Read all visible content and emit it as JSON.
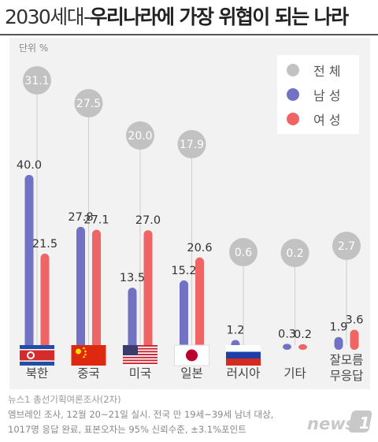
{
  "title": {
    "part1": "2030세대-",
    "part2": "우리나라에 가장 위협이 되는 나라"
  },
  "unit": "단위 %",
  "legend": {
    "total": "전 체",
    "male": "남 성",
    "female": "여 성"
  },
  "colors": {
    "total": "#c2c2c2",
    "male": "#7272c4",
    "female": "#ef6464",
    "title_rule": "#555555"
  },
  "chart_data": {
    "type": "bar",
    "unit": "%",
    "categories": [
      "북한",
      "중국",
      "미국",
      "일본",
      "러시아",
      "기타",
      "잘모름\n무응답"
    ],
    "flags": [
      "north-korea-flag",
      "china-flag",
      "usa-flag",
      "japan-flag",
      "russia-flag",
      "",
      ""
    ],
    "series": [
      {
        "name": "전 체",
        "values": [
          31.1,
          27.5,
          20.0,
          17.9,
          0.6,
          0.2,
          2.7
        ]
      },
      {
        "name": "남 성",
        "values": [
          40.0,
          27.8,
          13.5,
          15.2,
          1.2,
          0.3,
          1.9
        ]
      },
      {
        "name": "여 성",
        "values": [
          21.5,
          27.1,
          27.0,
          20.6,
          0.0,
          0.2,
          3.6
        ]
      }
    ],
    "labels": {
      "total": [
        "31.1",
        "27.5",
        "20.0",
        "17.9",
        "0.6",
        "0.2",
        "2.7"
      ],
      "male": [
        "40.0",
        "27.8",
        "13.5",
        "15.2",
        "1.2",
        "0.3",
        "1.9"
      ],
      "female": [
        "21.5",
        "27.1",
        "27.0",
        "20.6",
        "",
        "0.2",
        "3.6"
      ]
    },
    "ylim": [
      0,
      40
    ]
  },
  "footer": {
    "source": "뉴스1 총선기획여론조사(2차)",
    "line2": "엠브레인 조사, 12월 20~21일 실시. 전국 만 19세~39세 남녀 대상,",
    "line3": "1017명 응답 완료, 표본오차는 95% 신뢰수준, ±3.1%포인트"
  },
  "logo_text": "news1"
}
